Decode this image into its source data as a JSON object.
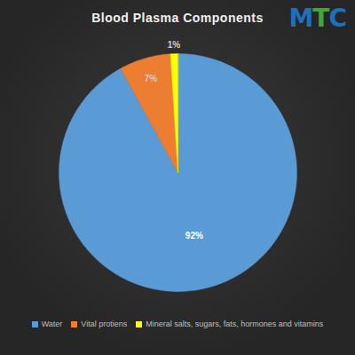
{
  "chart_data": {
    "type": "pie",
    "title": "Blood Plasma Components",
    "categories": [
      "Water",
      "Vital protiens",
      "Mineral salts, sugars, fats, hormones and vitamins"
    ],
    "values": [
      92,
      7,
      1
    ],
    "value_labels": [
      "92%",
      "7%",
      "1%"
    ],
    "colors": [
      "#5b9bd5",
      "#ed7d31",
      "#ffff00"
    ],
    "data_labels": true,
    "legend": "bottom"
  },
  "logo": "MTC"
}
